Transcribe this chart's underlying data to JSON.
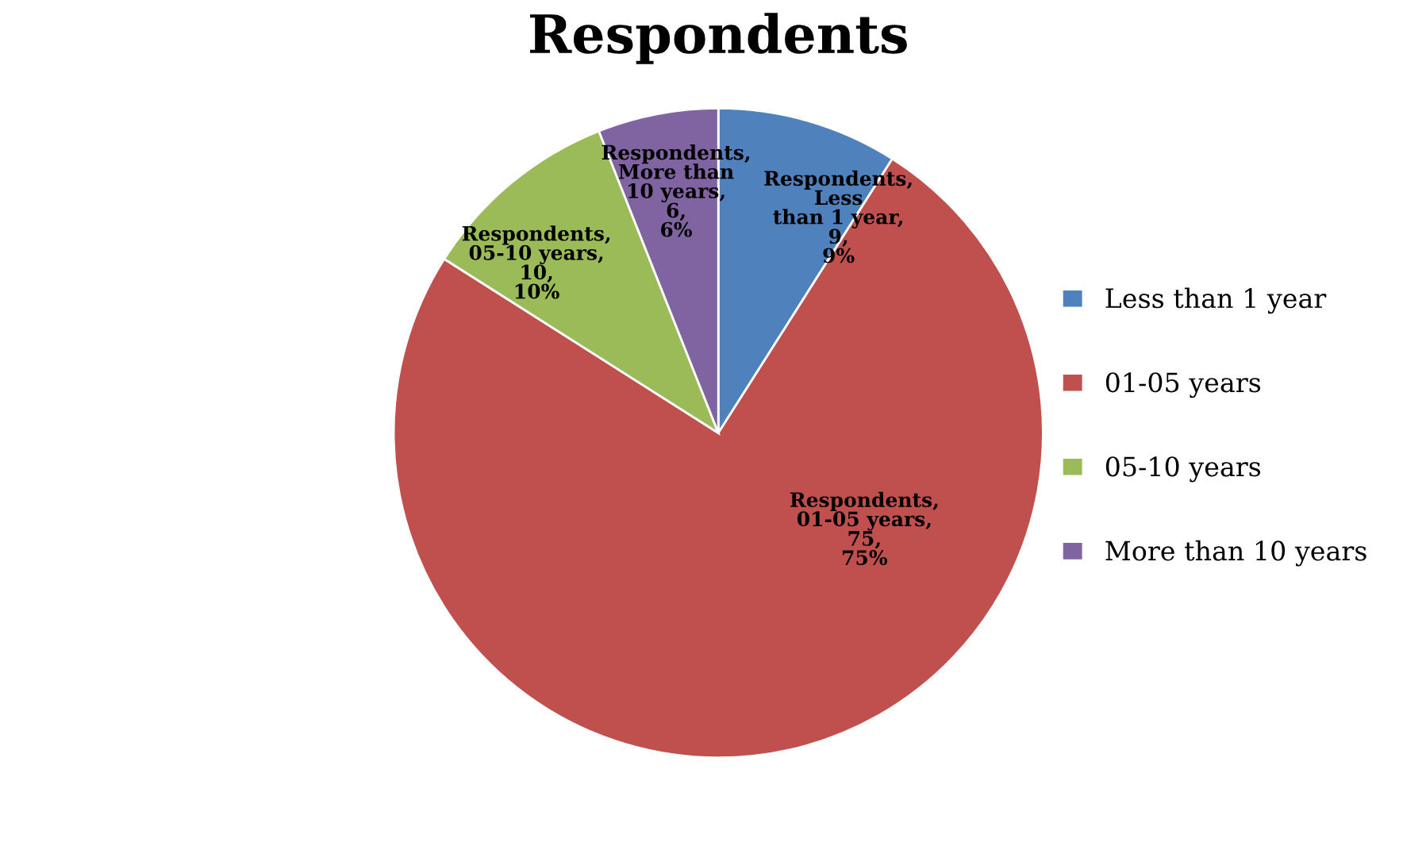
{
  "chart_data": {
    "type": "pie",
    "title": "Respondents",
    "categories": [
      "Less than 1 year",
      "01-05 years",
      "05-10 years",
      "More than 10 years"
    ],
    "values": [
      9,
      75,
      10,
      6
    ],
    "colors": [
      "#4f81bd",
      "#c0504d",
      "#9bbb59",
      "#8064a2"
    ],
    "value_labels": [
      "Respondents, Less than 1 year, 9, 9%",
      "Respondents, 01-05 years, 75, 75%",
      "Respondents, 05-10 years, 10, 10%",
      "Respondents, More than 10 years, 6, 6%"
    ],
    "legend": "right"
  }
}
